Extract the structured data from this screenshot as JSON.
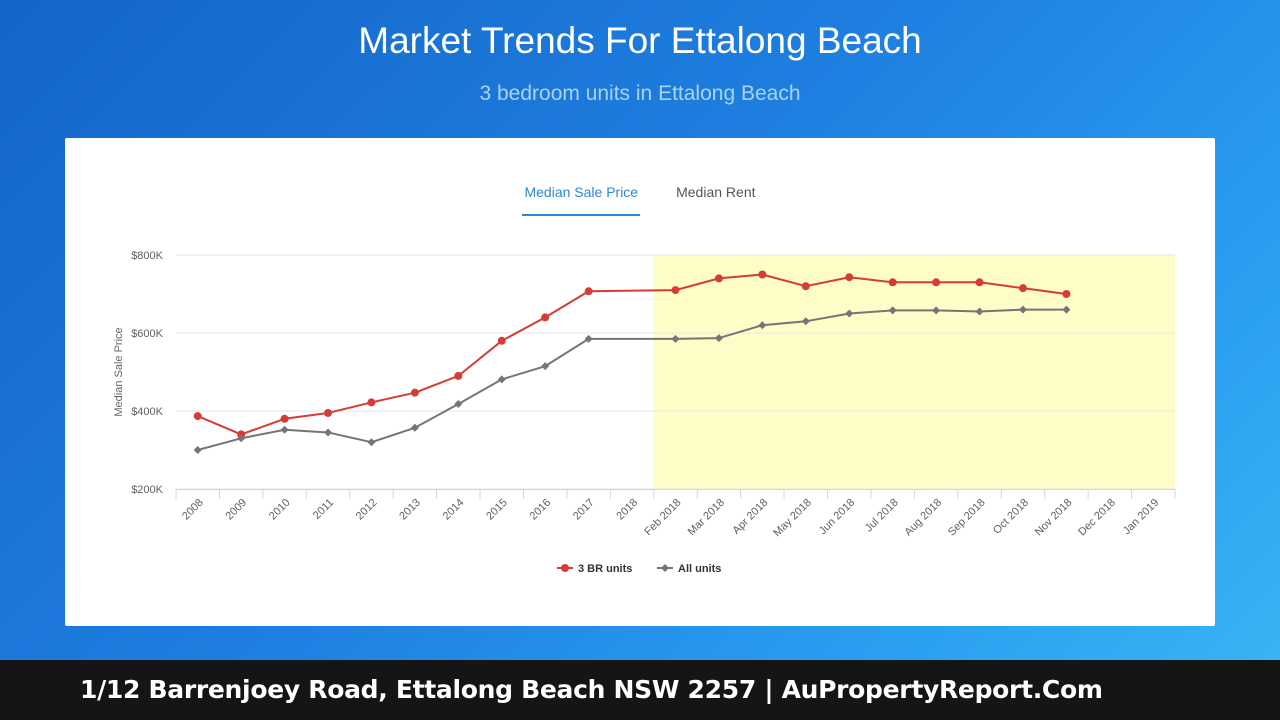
{
  "page": {
    "title": "Market Trends For Ettalong Beach",
    "subtitle": "3 bedroom units in Ettalong Beach"
  },
  "tabs": [
    {
      "label": "Median Sale Price",
      "active": true
    },
    {
      "label": "Median Rent",
      "active": false
    }
  ],
  "footer": {
    "text": "1/12 Barrenjoey Road, Ettalong Beach NSW 2257 | AuPropertyReport.Com"
  },
  "chart_data": {
    "type": "line",
    "ylabel": "Median Sale Price",
    "categories": [
      "2008",
      "2009",
      "2010",
      "2011",
      "2012",
      "2013",
      "2014",
      "2015",
      "2016",
      "2017",
      "2018",
      "Feb 2018",
      "Mar 2018",
      "Apr 2018",
      "May 2018",
      "Jun 2018",
      "Jul 2018",
      "Aug 2018",
      "Sep 2018",
      "Oct 2018",
      "Nov 2018",
      "Dec 2018",
      "Jan 2019"
    ],
    "yticks": [
      {
        "value": 200000,
        "label": "$200K"
      },
      {
        "value": 400000,
        "label": "$400K"
      },
      {
        "value": 600000,
        "label": "$600K"
      },
      {
        "value": 800000,
        "label": "$800K"
      }
    ],
    "ylim": [
      200000,
      800000
    ],
    "highlight_range": [
      "Feb 2018",
      "Jan 2019"
    ],
    "highlight_color": "#fefdc8",
    "grid": true,
    "legend_position": "bottom",
    "series": [
      {
        "name": "3 BR units",
        "color": "#d63c36",
        "marker": "circle",
        "values": [
          387000,
          340000,
          380000,
          395000,
          422000,
          447000,
          490000,
          580000,
          640000,
          707000,
          null,
          710000,
          740000,
          750000,
          720000,
          743000,
          730000,
          730000,
          730000,
          715000,
          700000,
          null,
          null
        ]
      },
      {
        "name": "All units",
        "color": "#757575",
        "marker": "diamond",
        "values": [
          300000,
          330000,
          352000,
          345000,
          320000,
          357000,
          418000,
          481000,
          515000,
          585000,
          null,
          585000,
          587000,
          620000,
          630000,
          650000,
          658000,
          658000,
          655000,
          660000,
          660000,
          null,
          null
        ]
      }
    ]
  }
}
